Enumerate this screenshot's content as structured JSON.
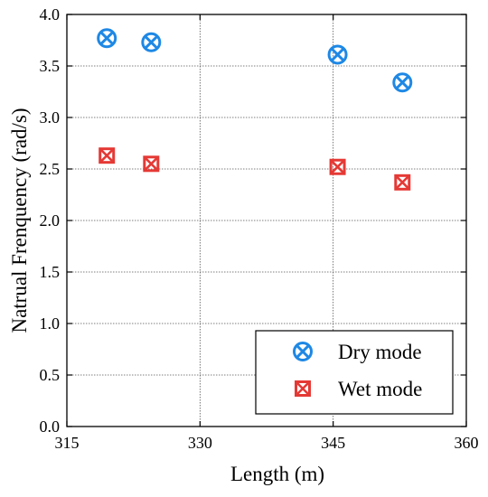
{
  "chart_data": {
    "type": "scatter",
    "title": "",
    "xlabel": "Length (m)",
    "ylabel": "Natrual Frenquency (rad/s)",
    "xlim": [
      315,
      360
    ],
    "ylim": [
      0.0,
      4.0
    ],
    "xticks": [
      315,
      330,
      345,
      360
    ],
    "xtick_labels": [
      "315",
      "330",
      "345",
      "360"
    ],
    "yticks": [
      0.0,
      0.5,
      1.0,
      1.5,
      2.0,
      2.5,
      3.0,
      3.5,
      4.0
    ],
    "ytick_labels": [
      "0.0",
      "0.5",
      "1.0",
      "1.5",
      "2.0",
      "2.5",
      "3.0",
      "3.5",
      "4.0"
    ],
    "grid": true,
    "legend_position": "bottom-right",
    "series": [
      {
        "name": "Dry mode",
        "marker": "circle-x",
        "color": "#1e88e5",
        "x": [
          319.5,
          324.5,
          345.5,
          352.8
        ],
        "y": [
          3.77,
          3.73,
          3.61,
          3.34
        ]
      },
      {
        "name": "Wet mode",
        "marker": "square-x",
        "color": "#e53935",
        "x": [
          319.5,
          324.5,
          345.5,
          352.8
        ],
        "y": [
          2.63,
          2.55,
          2.52,
          2.37
        ]
      }
    ]
  }
}
